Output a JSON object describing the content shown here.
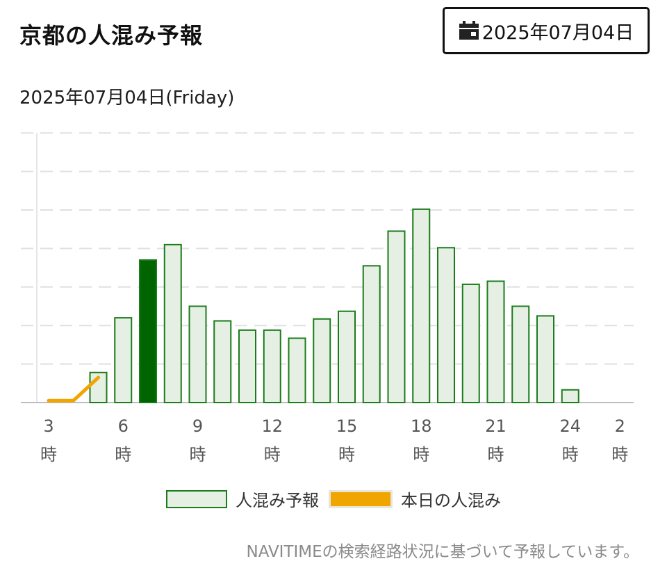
{
  "header": {
    "title": "京都の人混み予報",
    "date_button": "2025年07月04日",
    "calendar_icon": "calendar-icon"
  },
  "subtitle": "2025年07月04日(Friday)",
  "legend": {
    "forecast": "人混み予報",
    "today": "本日の人混み"
  },
  "footnote": "NAVITIMEの検索経路状況に基づいて予報しています。",
  "colors": {
    "bar_fill": "#e5efe3",
    "bar_stroke": "#1a7c1a",
    "highlight_fill": "#006400",
    "today_line": "#f0a500",
    "grid": "#e0e0e0"
  },
  "chart_data": {
    "type": "bar",
    "ylim": [
      0,
      7
    ],
    "grid": true,
    "x_ticks": [
      {
        "hour": 3,
        "top": "3",
        "bottom": "時"
      },
      {
        "hour": 6,
        "top": "6",
        "bottom": "時"
      },
      {
        "hour": 9,
        "top": "9",
        "bottom": "時"
      },
      {
        "hour": 12,
        "top": "12",
        "bottom": "時"
      },
      {
        "hour": 15,
        "top": "15",
        "bottom": "時"
      },
      {
        "hour": 18,
        "top": "18",
        "bottom": "時"
      },
      {
        "hour": 21,
        "top": "21",
        "bottom": "時"
      },
      {
        "hour": 24,
        "top": "24",
        "bottom": "時"
      },
      {
        "hour": 26,
        "top": "2",
        "bottom": "時"
      }
    ],
    "series": [
      {
        "name": "人混み予報",
        "hours": [
          5,
          6,
          7,
          8,
          9,
          10,
          11,
          12,
          13,
          14,
          15,
          16,
          17,
          18,
          19,
          20,
          21,
          22,
          23,
          24
        ],
        "values": [
          0.78,
          2.2,
          3.7,
          4.1,
          2.5,
          2.12,
          1.88,
          1.88,
          1.67,
          2.17,
          2.37,
          3.55,
          4.45,
          5.02,
          4.02,
          3.07,
          3.15,
          2.5,
          2.25,
          0.33
        ],
        "highlight_hour": 7
      },
      {
        "name": "本日の人混み",
        "hours": [
          3,
          4,
          5
        ],
        "values": [
          0.05,
          0.05,
          0.65
        ]
      }
    ]
  }
}
